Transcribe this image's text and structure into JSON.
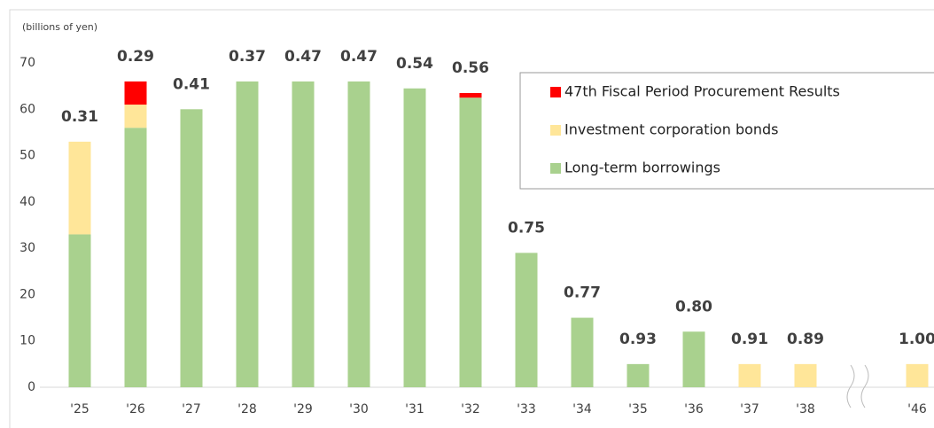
{
  "chart_data": {
    "type": "stacked_bar",
    "y_label": "(billions of yen)",
    "categories": [
      "'25",
      "'26",
      "'27",
      "'28",
      "'29",
      "'30",
      "'31",
      "'32",
      "'33",
      "'34",
      "'35",
      "'36",
      "'37",
      "'38",
      "'46"
    ],
    "series": [
      {
        "name": "Long-term borrowings",
        "color": "#a9d18e",
        "values": [
          33,
          56,
          60,
          66,
          66,
          66,
          64.5,
          62.5,
          29,
          15,
          5,
          12,
          0,
          0,
          0
        ]
      },
      {
        "name": "Investment corporation bonds",
        "color": "#ffe699",
        "values": [
          20,
          5,
          0,
          0,
          0,
          0,
          0,
          0,
          0,
          0,
          0,
          0,
          5,
          5,
          5
        ]
      },
      {
        "name": "47th Fiscal Period Procurement Results",
        "color": "#ff0000",
        "values": [
          0,
          5,
          0,
          0,
          0,
          0,
          0,
          1,
          0,
          0,
          0,
          0,
          0,
          0,
          0
        ]
      }
    ],
    "bar_labels": [
      "0.31",
      "0.29",
      "0.41",
      "0.37",
      "0.47",
      "0.47",
      "0.54",
      "0.56",
      "0.75",
      "0.77",
      "0.93",
      "0.80",
      "0.91",
      "0.89",
      "1.00"
    ],
    "ylim": [
      0,
      70
    ],
    "yticks": [
      0,
      10,
      20,
      30,
      40,
      50,
      60,
      70
    ],
    "axis_break": true
  }
}
